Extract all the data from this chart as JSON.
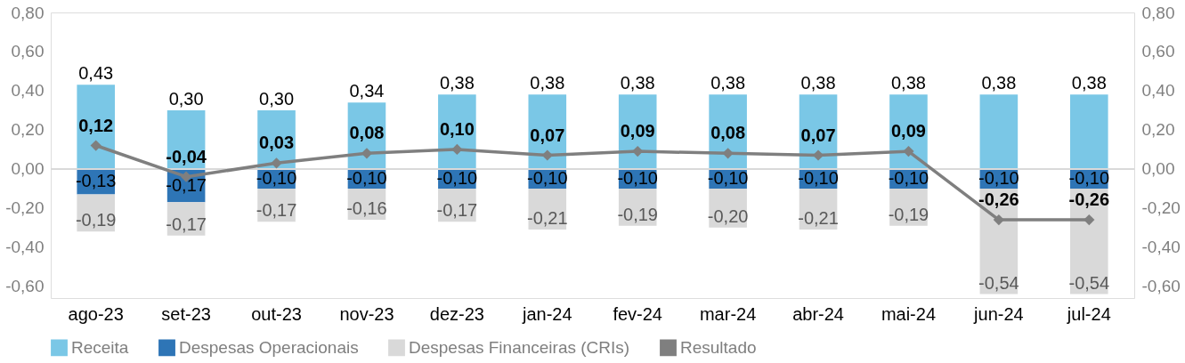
{
  "chart_data": {
    "type": "bar",
    "stacked": true,
    "grid": false,
    "legend": "bottom",
    "marker": "diamond",
    "line_style": "solid",
    "categories": [
      "ago-23",
      "set-23",
      "out-23",
      "nov-23",
      "dez-23",
      "jan-24",
      "fev-24",
      "mar-24",
      "abr-24",
      "mai-24",
      "jun-24",
      "jul-24"
    ],
    "series": [
      {
        "name": "Receita",
        "type": "bar",
        "color": "#7ac7e6",
        "values": [
          0.43,
          0.3,
          0.3,
          0.34,
          0.38,
          0.38,
          0.38,
          0.38,
          0.38,
          0.38,
          0.38,
          0.38
        ],
        "value_labels": [
          "0,43",
          "0,30",
          "0,30",
          "0,34",
          "0,38",
          "0,38",
          "0,38",
          "0,38",
          "0,38",
          "0,38",
          "0,38",
          "0,38"
        ]
      },
      {
        "name": "Despesas Operacionais",
        "type": "bar",
        "color": "#2e75b6",
        "values": [
          -0.13,
          -0.17,
          -0.1,
          -0.1,
          -0.1,
          -0.1,
          -0.1,
          -0.1,
          -0.1,
          -0.1,
          -0.1,
          -0.1
        ],
        "value_labels": [
          "-0,13",
          "-0,17",
          "-0,10",
          "-0,10",
          "-0,10",
          "-0,10",
          "-0,10",
          "-0,10",
          "-0,10",
          "-0,10",
          "-0,10",
          "-0,10"
        ]
      },
      {
        "name": "Despesas Financeiras (CRIs)",
        "type": "bar",
        "color": "#d9d9d9",
        "values": [
          -0.19,
          -0.17,
          -0.17,
          -0.16,
          -0.17,
          -0.21,
          -0.19,
          -0.2,
          -0.21,
          -0.19,
          -0.54,
          -0.54
        ],
        "value_labels": [
          "-0,19",
          "-0,17",
          "-0,17",
          "-0,16",
          "-0,17",
          "-0,21",
          "-0,19",
          "-0,20",
          "-0,21",
          "-0,19",
          "-0,54",
          "-0,54"
        ]
      },
      {
        "name": "Resultado",
        "type": "line",
        "axis": "y2",
        "color": "#7f7f7f",
        "values": [
          0.12,
          -0.04,
          0.03,
          0.08,
          0.1,
          0.07,
          0.09,
          0.08,
          0.07,
          0.09,
          -0.26,
          -0.26
        ],
        "value_labels": [
          "0,12",
          "-0,04",
          "0,03",
          "0,08",
          "0,10",
          "0,07",
          "0,09",
          "0,08",
          "0,07",
          "0,09",
          "-0,26",
          "-0,26"
        ]
      }
    ],
    "ylim": [
      -0.66,
      0.8
    ],
    "yticks": [
      {
        "value": -0.6,
        "label": "-0,60"
      },
      {
        "value": -0.4,
        "label": "-0,40"
      },
      {
        "value": -0.2,
        "label": "-0,20"
      },
      {
        "value": 0,
        "label": "0,00"
      },
      {
        "value": 0.2,
        "label": "0,20"
      },
      {
        "value": 0.4,
        "label": "0,40"
      },
      {
        "value": 0.6,
        "label": "0,60"
      },
      {
        "value": 0.8,
        "label": "0,80"
      }
    ],
    "y2lim": [
      -0.66,
      0.8
    ],
    "y2ticks": [
      {
        "value": -0.6,
        "label": "-0,60"
      },
      {
        "value": -0.4,
        "label": "-0,40"
      },
      {
        "value": -0.2,
        "label": "-0,20"
      },
      {
        "value": 0,
        "label": "0,00"
      },
      {
        "value": 0.2,
        "label": "0,20"
      },
      {
        "value": 0.4,
        "label": "0,40"
      },
      {
        "value": 0.6,
        "label": "0,60"
      },
      {
        "value": 0.8,
        "label": "0,80"
      }
    ],
    "ref_lines": [
      {
        "axis": "y",
        "value": 0,
        "color": "#d9d9d9"
      }
    ]
  }
}
